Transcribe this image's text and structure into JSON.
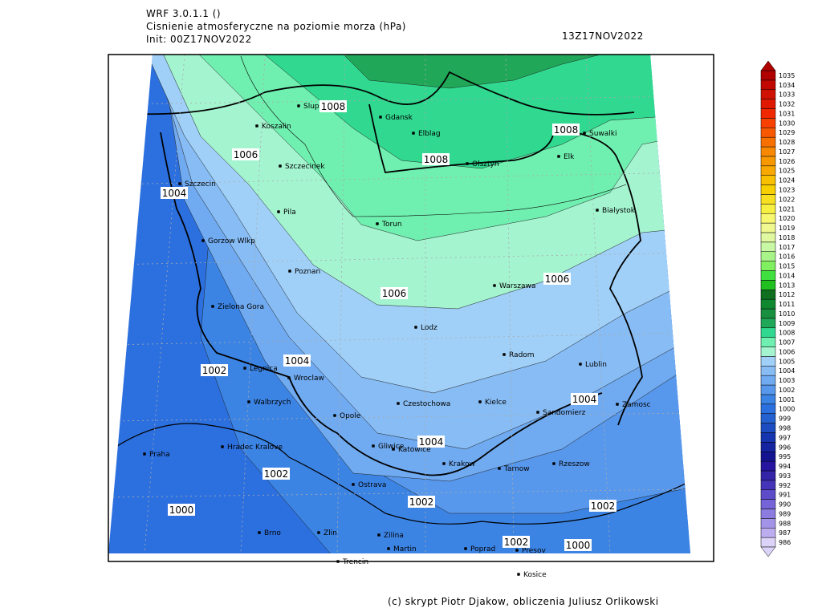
{
  "header": {
    "model": "WRF 3.0.1.1 ()",
    "title": "Cisnienie atmosferyczne na poziomie morza (hPa)",
    "init": "Init: 00Z17NOV2022",
    "valid": "13Z17NOV2022"
  },
  "cities": [
    "Slupsk",
    "Gdansk",
    "Koszalin",
    "Elblag",
    "Suwalki",
    "Elk",
    "Olsztyn",
    "Szczecinek",
    "Szczecin",
    "Pila",
    "Torun",
    "Bialystok",
    "Gorzow Wlkp",
    "Poznan",
    "Warszawa",
    "Zielona Gora",
    "Lodz",
    "Radom",
    "Lublin",
    "Legnica",
    "Wroclaw",
    "Walbrzych",
    "Opole",
    "Czestochowa",
    "Kielce",
    "Sandomierz",
    "Zamosc",
    "Hradec Kralove",
    "Praha",
    "Gliwice",
    "Katowice",
    "Krakow",
    "Tarnow",
    "Rzeszow",
    "Ostrava",
    "Brno",
    "Zlin",
    "Zilina",
    "Martin",
    "Poprad",
    "Presov",
    "Trencin",
    "Kosice"
  ],
  "contour_labels": [
    1008,
    1008,
    1008,
    1006,
    1004,
    1006,
    1006,
    1004,
    1002,
    1004,
    1004,
    1002,
    1002,
    1002,
    1000,
    1002,
    1000
  ],
  "colorbar": {
    "levels": [
      986,
      987,
      988,
      989,
      990,
      991,
      992,
      993,
      994,
      995,
      996,
      997,
      998,
      999,
      1000,
      1001,
      1002,
      1003,
      1004,
      1005,
      1006,
      1007,
      1008,
      1009,
      1010,
      1011,
      1012,
      1013,
      1014,
      1015,
      1016,
      1017,
      1018,
      1019,
      1020,
      1021,
      1022,
      1023,
      1024,
      1025,
      1026,
      1027,
      1028,
      1029,
      1030,
      1031,
      1032,
      1033,
      1034,
      1035
    ],
    "colors": [
      "#dcd4f8",
      "#bcacf0",
      "#a494e8",
      "#8c7ce0",
      "#7464d8",
      "#5c4cc8",
      "#4434b8",
      "#3424a8",
      "#2414a0",
      "#141490",
      "#1424a0",
      "#1434b0",
      "#1c4cc0",
      "#2460d0",
      "#2c70e0",
      "#3c84e4",
      "#5898ec",
      "#70aaf0",
      "#88bcf4",
      "#a0d0f8",
      "#a4f4d0",
      "#70f0b0",
      "#30d890",
      "#20a858",
      "#189040",
      "#108830",
      "#107020",
      "#20c020",
      "#40e040",
      "#80f060",
      "#a8f488",
      "#c8f8a4",
      "#e0f8a0",
      "#f0f890",
      "#f8f870",
      "#f8f040",
      "#f8e020",
      "#f8d000",
      "#f8c000",
      "#f8a800",
      "#f89800",
      "#f88800",
      "#f87000",
      "#f85800",
      "#f84000",
      "#f02800",
      "#e01800",
      "#d01000",
      "#c00800",
      "#b00000"
    ]
  },
  "footer": "(c) skrypt Piotr Djakow, obliczenia Juliusz Orlikowski"
}
